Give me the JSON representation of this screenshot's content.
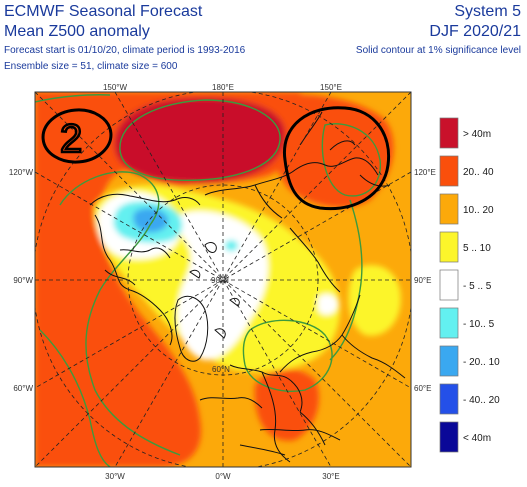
{
  "header": {
    "title_line1": "ECMWF Seasonal Forecast",
    "title_line2": "Mean Z500 anomaly",
    "info_line1": "Forecast start is 01/10/20, climate period is 1993-2016",
    "info_line2": "Ensemble size = 51, climate size = 600",
    "system": "System 5",
    "season": "DJF 2020/21",
    "significance_note": "Solid contour at 1% significance level"
  },
  "map": {
    "top_labels": [
      "150°W",
      "180°E",
      "150°E"
    ],
    "bottom_labels": [
      "30°W",
      "0°W",
      "30°E"
    ],
    "left_labels": [
      "120°W",
      "90°W",
      "60°W"
    ],
    "right_labels": [
      "120°E",
      "90°E",
      "60°E"
    ],
    "lat_labels": [
      "90°N",
      "60°N"
    ],
    "annotation_text": "2",
    "colors": {
      "gt40": "#c9112b",
      "20to40": "#fa4f0c",
      "10to20": "#fca90a",
      "5to10": "#fcf52b",
      "neutral": "#ffffff",
      "m10to5": "#63f0f0",
      "m20to10": "#3aa8f0",
      "m40to20": "#2450e8",
      "lt40": "#0a0898",
      "contour": "#3d9a3d"
    }
  },
  "legend": {
    "items": [
      {
        "label": "> 40m",
        "color": "#c9112b"
      },
      {
        "label": "20.. 40",
        "color": "#fa4f0c"
      },
      {
        "label": "10.. 20",
        "color": "#fca90a"
      },
      {
        "label": "5 .. 10",
        "color": "#fcf52b"
      },
      {
        "label": "- 5 .. 5",
        "color": "#ffffff"
      },
      {
        "label": "- 10.. 5",
        "color": "#63f0f0"
      },
      {
        "label": "- 20.. 10",
        "color": "#3aa8f0"
      },
      {
        "label": "- 40.. 20",
        "color": "#2450e8"
      },
      {
        "label": "< 40m",
        "color": "#0a0898"
      }
    ]
  }
}
